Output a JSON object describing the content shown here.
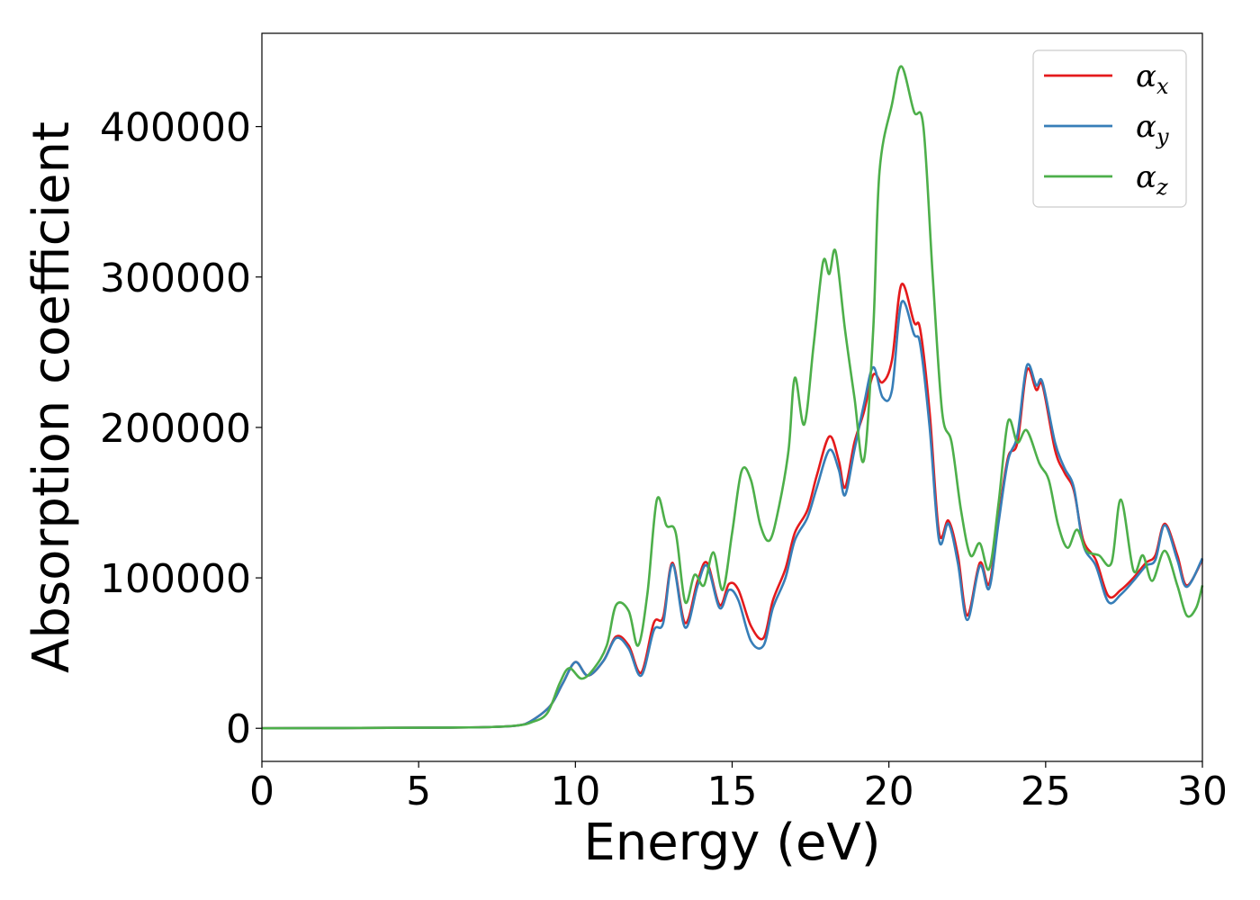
{
  "chart_data": {
    "type": "line",
    "xlabel": "Energy (eV)",
    "ylabel": "Absorption coefficient",
    "xlim": [
      0,
      30
    ],
    "ylim": [
      -22000,
      462000
    ],
    "xticks": [
      0,
      5,
      10,
      15,
      20,
      25,
      30
    ],
    "yticks": [
      0,
      100000,
      200000,
      300000,
      400000
    ],
    "grid": false,
    "legend_position": "top-right",
    "series": [
      {
        "name": "αx",
        "base": "α",
        "sub": "x",
        "color": "#e41a1c",
        "points": [
          [
            0,
            0
          ],
          [
            6,
            500
          ],
          [
            7.5,
            1000
          ],
          [
            8.2,
            2000
          ],
          [
            8.6,
            5000
          ],
          [
            9.2,
            15000
          ],
          [
            9.6,
            30000
          ],
          [
            10.0,
            44000
          ],
          [
            10.4,
            35000
          ],
          [
            10.9,
            45000
          ],
          [
            11.3,
            61000
          ],
          [
            11.7,
            55000
          ],
          [
            12.1,
            37000
          ],
          [
            12.5,
            70000
          ],
          [
            12.8,
            74000
          ],
          [
            13.1,
            110000
          ],
          [
            13.5,
            70000
          ],
          [
            13.9,
            98000
          ],
          [
            14.2,
            110000
          ],
          [
            14.6,
            82000
          ],
          [
            14.9,
            96000
          ],
          [
            15.2,
            92000
          ],
          [
            15.6,
            68000
          ],
          [
            16.0,
            60000
          ],
          [
            16.3,
            85000
          ],
          [
            16.7,
            106000
          ],
          [
            17.0,
            130000
          ],
          [
            17.4,
            145000
          ],
          [
            17.7,
            168000
          ],
          [
            18.1,
            194000
          ],
          [
            18.4,
            178000
          ],
          [
            18.6,
            160000
          ],
          [
            18.9,
            190000
          ],
          [
            19.2,
            210000
          ],
          [
            19.5,
            235000
          ],
          [
            19.8,
            230000
          ],
          [
            20.1,
            245000
          ],
          [
            20.4,
            295000
          ],
          [
            20.8,
            270000
          ],
          [
            21.0,
            265000
          ],
          [
            21.3,
            210000
          ],
          [
            21.6,
            130000
          ],
          [
            21.9,
            138000
          ],
          [
            22.2,
            115000
          ],
          [
            22.5,
            75000
          ],
          [
            22.9,
            110000
          ],
          [
            23.2,
            96000
          ],
          [
            23.5,
            140000
          ],
          [
            23.8,
            180000
          ],
          [
            24.1,
            190000
          ],
          [
            24.4,
            238000
          ],
          [
            24.7,
            225000
          ],
          [
            24.9,
            228000
          ],
          [
            25.3,
            185000
          ],
          [
            25.6,
            170000
          ],
          [
            25.9,
            158000
          ],
          [
            26.2,
            125000
          ],
          [
            26.6,
            112000
          ],
          [
            27.0,
            88000
          ],
          [
            27.4,
            92000
          ],
          [
            27.8,
            100000
          ],
          [
            28.2,
            110000
          ],
          [
            28.5,
            115000
          ],
          [
            28.8,
            136000
          ],
          [
            29.2,
            115000
          ],
          [
            29.5,
            95000
          ],
          [
            30,
            112000
          ]
        ]
      },
      {
        "name": "αy",
        "base": "α",
        "sub": "y",
        "color": "#377eb8",
        "points": [
          [
            0,
            0
          ],
          [
            6,
            500
          ],
          [
            7.5,
            1000
          ],
          [
            8.2,
            2000
          ],
          [
            8.6,
            5000
          ],
          [
            9.2,
            15000
          ],
          [
            9.6,
            30000
          ],
          [
            10.0,
            44000
          ],
          [
            10.4,
            35000
          ],
          [
            10.9,
            45000
          ],
          [
            11.3,
            60000
          ],
          [
            11.7,
            53000
          ],
          [
            12.1,
            35000
          ],
          [
            12.5,
            65000
          ],
          [
            12.8,
            70000
          ],
          [
            13.1,
            109000
          ],
          [
            13.5,
            67000
          ],
          [
            13.9,
            95000
          ],
          [
            14.2,
            108000
          ],
          [
            14.6,
            80000
          ],
          [
            14.9,
            92000
          ],
          [
            15.2,
            85000
          ],
          [
            15.6,
            58000
          ],
          [
            16.0,
            55000
          ],
          [
            16.3,
            80000
          ],
          [
            16.7,
            100000
          ],
          [
            17.0,
            125000
          ],
          [
            17.4,
            140000
          ],
          [
            17.7,
            160000
          ],
          [
            18.1,
            185000
          ],
          [
            18.4,
            172000
          ],
          [
            18.6,
            155000
          ],
          [
            18.9,
            185000
          ],
          [
            19.2,
            215000
          ],
          [
            19.5,
            240000
          ],
          [
            19.8,
            220000
          ],
          [
            20.1,
            225000
          ],
          [
            20.4,
            283000
          ],
          [
            20.8,
            262000
          ],
          [
            21.0,
            255000
          ],
          [
            21.3,
            200000
          ],
          [
            21.6,
            125000
          ],
          [
            21.9,
            136000
          ],
          [
            22.2,
            110000
          ],
          [
            22.5,
            72000
          ],
          [
            22.9,
            108000
          ],
          [
            23.2,
            93000
          ],
          [
            23.5,
            137000
          ],
          [
            23.8,
            178000
          ],
          [
            24.1,
            195000
          ],
          [
            24.4,
            241000
          ],
          [
            24.7,
            228000
          ],
          [
            24.9,
            230000
          ],
          [
            25.3,
            190000
          ],
          [
            25.6,
            173000
          ],
          [
            25.9,
            160000
          ],
          [
            26.2,
            122000
          ],
          [
            26.6,
            108000
          ],
          [
            27.0,
            84000
          ],
          [
            27.4,
            89000
          ],
          [
            27.8,
            98000
          ],
          [
            28.2,
            108000
          ],
          [
            28.5,
            112000
          ],
          [
            28.8,
            135000
          ],
          [
            29.2,
            112000
          ],
          [
            29.5,
            94000
          ],
          [
            30,
            113000
          ]
        ]
      },
      {
        "name": "αz",
        "base": "α",
        "sub": "z",
        "color": "#4daf4a",
        "points": [
          [
            0,
            0
          ],
          [
            6,
            500
          ],
          [
            7.5,
            1000
          ],
          [
            8.2,
            2000
          ],
          [
            8.6,
            4000
          ],
          [
            9.1,
            10000
          ],
          [
            9.5,
            30000
          ],
          [
            9.8,
            40000
          ],
          [
            10.2,
            33000
          ],
          [
            10.6,
            40000
          ],
          [
            11.0,
            55000
          ],
          [
            11.3,
            82000
          ],
          [
            11.7,
            78000
          ],
          [
            12.0,
            55000
          ],
          [
            12.3,
            90000
          ],
          [
            12.6,
            152000
          ],
          [
            12.9,
            135000
          ],
          [
            13.2,
            130000
          ],
          [
            13.5,
            84000
          ],
          [
            13.8,
            102000
          ],
          [
            14.1,
            95000
          ],
          [
            14.4,
            117000
          ],
          [
            14.7,
            92000
          ],
          [
            15.0,
            130000
          ],
          [
            15.3,
            171000
          ],
          [
            15.6,
            165000
          ],
          [
            15.9,
            135000
          ],
          [
            16.2,
            125000
          ],
          [
            16.5,
            148000
          ],
          [
            16.8,
            185000
          ],
          [
            17.0,
            233000
          ],
          [
            17.3,
            202000
          ],
          [
            17.6,
            255000
          ],
          [
            17.9,
            310000
          ],
          [
            18.1,
            302000
          ],
          [
            18.3,
            317000
          ],
          [
            18.6,
            265000
          ],
          [
            18.9,
            220000
          ],
          [
            19.2,
            178000
          ],
          [
            19.5,
            265000
          ],
          [
            19.7,
            370000
          ],
          [
            20.1,
            415000
          ],
          [
            20.4,
            440000
          ],
          [
            20.8,
            410000
          ],
          [
            21.1,
            400000
          ],
          [
            21.4,
            300000
          ],
          [
            21.7,
            210000
          ],
          [
            22.0,
            190000
          ],
          [
            22.3,
            145000
          ],
          [
            22.6,
            115000
          ],
          [
            22.9,
            123000
          ],
          [
            23.2,
            106000
          ],
          [
            23.5,
            150000
          ],
          [
            23.8,
            204000
          ],
          [
            24.1,
            190000
          ],
          [
            24.4,
            198000
          ],
          [
            24.8,
            176000
          ],
          [
            25.1,
            165000
          ],
          [
            25.4,
            135000
          ],
          [
            25.7,
            120000
          ],
          [
            26.0,
            132000
          ],
          [
            26.3,
            118000
          ],
          [
            26.7,
            115000
          ],
          [
            27.1,
            110000
          ],
          [
            27.4,
            152000
          ],
          [
            27.8,
            105000
          ],
          [
            28.1,
            115000
          ],
          [
            28.4,
            98000
          ],
          [
            28.8,
            118000
          ],
          [
            29.2,
            95000
          ],
          [
            29.5,
            75000
          ],
          [
            29.8,
            80000
          ],
          [
            30,
            95000
          ]
        ]
      }
    ]
  }
}
